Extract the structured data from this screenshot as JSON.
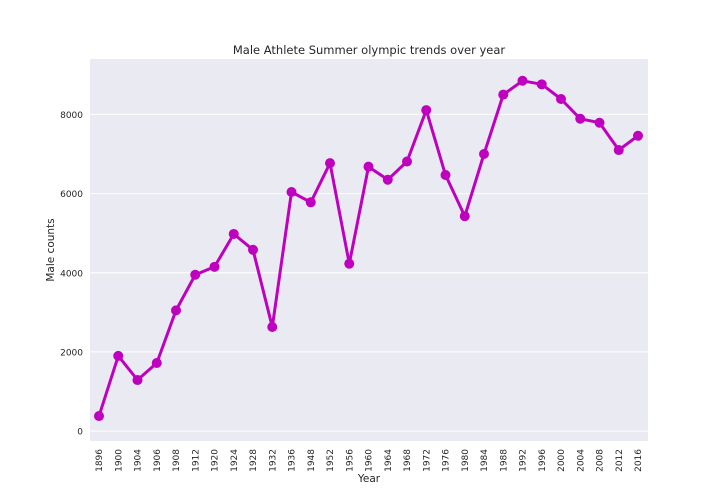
{
  "chart_data": {
    "type": "line",
    "title": "Male Athlete Summer olympic trends over year",
    "xlabel": "Year",
    "ylabel": "Male counts",
    "categories": [
      "1896",
      "1900",
      "1904",
      "1906",
      "1908",
      "1912",
      "1920",
      "1924",
      "1928",
      "1932",
      "1936",
      "1948",
      "1952",
      "1956",
      "1960",
      "1964",
      "1968",
      "1972",
      "1976",
      "1980",
      "1984",
      "1988",
      "1992",
      "1996",
      "2000",
      "2004",
      "2008",
      "2012",
      "2016"
    ],
    "series": [
      {
        "values": [
          380,
          1900,
          1290,
          1720,
          3050,
          3950,
          4150,
          4980,
          4580,
          2630,
          6040,
          5780,
          6770,
          4230,
          6680,
          6350,
          6810,
          8110,
          6470,
          5430,
          7000,
          8500,
          8850,
          8760,
          8390,
          7890,
          7790,
          7100,
          7460
        ]
      }
    ],
    "yticks": [
      0,
      2000,
      4000,
      6000,
      8000
    ],
    "ylim": [
      -250,
      9400
    ],
    "grid": "horizontal",
    "color": "#bf00bf",
    "background": "#eaeaf2"
  }
}
